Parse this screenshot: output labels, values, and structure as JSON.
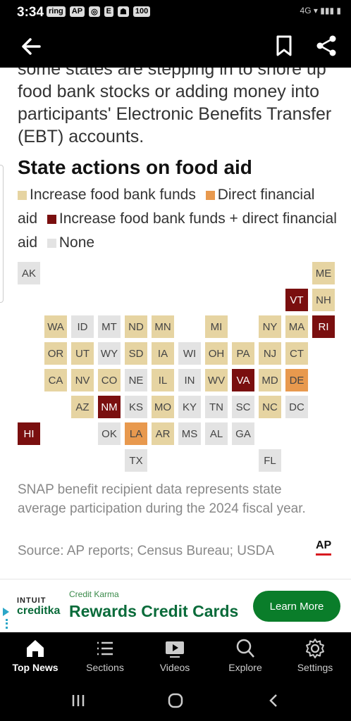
{
  "status_bar": {
    "time": "3:34",
    "left_icons": [
      "ring",
      "AP",
      "github-icon",
      "E",
      "snapchat-icon",
      "100"
    ],
    "right_text": "4G ▾ ▮▮▮ ▮"
  },
  "app_bar": {
    "back_icon": "arrow-left-icon",
    "bookmark_icon": "bookmark-icon",
    "share_icon": "share-icon"
  },
  "article": {
    "intro": "some states are stepping in to shore up food bank stocks or adding money into participants' Electronic Benefits Transfer (EBT) accounts."
  },
  "chart_data": {
    "type": "table",
    "title": "State actions on food aid",
    "legend": [
      {
        "label": "Increase food bank funds",
        "color": "#e6d4a2"
      },
      {
        "label": "Direct financial aid",
        "color": "#e8994e"
      },
      {
        "label": "Increase food bank funds + direct financial aid",
        "color": "#7a0f0f"
      },
      {
        "label": "None",
        "color": "#e3e3e3"
      }
    ],
    "states": [
      {
        "abbr": "AK",
        "action": "None"
      },
      {
        "abbr": "ME",
        "action": "Increase food bank funds"
      },
      {
        "abbr": "VT",
        "action": "Increase food bank funds + direct financial aid"
      },
      {
        "abbr": "NH",
        "action": "Increase food bank funds"
      },
      {
        "abbr": "WA",
        "action": "Increase food bank funds"
      },
      {
        "abbr": "ID",
        "action": "None"
      },
      {
        "abbr": "MT",
        "action": "None"
      },
      {
        "abbr": "ND",
        "action": "Increase food bank funds"
      },
      {
        "abbr": "MN",
        "action": "Increase food bank funds"
      },
      {
        "abbr": "MI",
        "action": "Increase food bank funds"
      },
      {
        "abbr": "NY",
        "action": "Increase food bank funds"
      },
      {
        "abbr": "MA",
        "action": "Increase food bank funds"
      },
      {
        "abbr": "RI",
        "action": "Increase food bank funds + direct financial aid"
      },
      {
        "abbr": "OR",
        "action": "Increase food bank funds"
      },
      {
        "abbr": "UT",
        "action": "Increase food bank funds"
      },
      {
        "abbr": "WY",
        "action": "None"
      },
      {
        "abbr": "SD",
        "action": "Increase food bank funds"
      },
      {
        "abbr": "IA",
        "action": "Increase food bank funds"
      },
      {
        "abbr": "WI",
        "action": "None"
      },
      {
        "abbr": "OH",
        "action": "Increase food bank funds"
      },
      {
        "abbr": "PA",
        "action": "Increase food bank funds"
      },
      {
        "abbr": "NJ",
        "action": "Increase food bank funds"
      },
      {
        "abbr": "CT",
        "action": "Increase food bank funds"
      },
      {
        "abbr": "CA",
        "action": "Increase food bank funds"
      },
      {
        "abbr": "NV",
        "action": "Increase food bank funds"
      },
      {
        "abbr": "CO",
        "action": "Increase food bank funds"
      },
      {
        "abbr": "NE",
        "action": "None"
      },
      {
        "abbr": "IL",
        "action": "Increase food bank funds"
      },
      {
        "abbr": "IN",
        "action": "None"
      },
      {
        "abbr": "WV",
        "action": "Increase food bank funds"
      },
      {
        "abbr": "VA",
        "action": "Increase food bank funds + direct financial aid"
      },
      {
        "abbr": "MD",
        "action": "Increase food bank funds"
      },
      {
        "abbr": "DE",
        "action": "Direct financial aid"
      },
      {
        "abbr": "AZ",
        "action": "Increase food bank funds"
      },
      {
        "abbr": "NM",
        "action": "Increase food bank funds + direct financial aid"
      },
      {
        "abbr": "KS",
        "action": "None"
      },
      {
        "abbr": "MO",
        "action": "Increase food bank funds"
      },
      {
        "abbr": "KY",
        "action": "None"
      },
      {
        "abbr": "TN",
        "action": "None"
      },
      {
        "abbr": "SC",
        "action": "None"
      },
      {
        "abbr": "NC",
        "action": "Increase food bank funds"
      },
      {
        "abbr": "DC",
        "action": "None"
      },
      {
        "abbr": "HI",
        "action": "Increase food bank funds + direct financial aid"
      },
      {
        "abbr": "OK",
        "action": "None"
      },
      {
        "abbr": "LA",
        "action": "Direct financial aid"
      },
      {
        "abbr": "AR",
        "action": "Increase food bank funds"
      },
      {
        "abbr": "MS",
        "action": "None"
      },
      {
        "abbr": "AL",
        "action": "None"
      },
      {
        "abbr": "GA",
        "action": "None"
      },
      {
        "abbr": "TX",
        "action": "None"
      },
      {
        "abbr": "FL",
        "action": "None"
      }
    ],
    "note": "SNAP benefit recipient data represents state average participation during the 2024 fiscal year.",
    "source": "Source: AP reports; Census Bureau; USDA",
    "logo": "AP"
  },
  "ad": {
    "brand_top": "INTUIT",
    "brand_bottom": "creditka",
    "kicker": "Credit Karma",
    "headline": "Rewards Credit Cards",
    "cta": "Learn More"
  },
  "bottom_nav": [
    {
      "label": "Top News",
      "icon": "home-icon",
      "active": true
    },
    {
      "label": "Sections",
      "icon": "list-icon",
      "active": false
    },
    {
      "label": "Videos",
      "icon": "video-icon",
      "active": false
    },
    {
      "label": "Explore",
      "icon": "search-icon",
      "active": false
    },
    {
      "label": "Settings",
      "icon": "gear-icon",
      "active": false
    }
  ],
  "system_nav": {
    "icons": [
      "recents-icon",
      "home-circle-icon",
      "back-chevron-icon"
    ]
  }
}
